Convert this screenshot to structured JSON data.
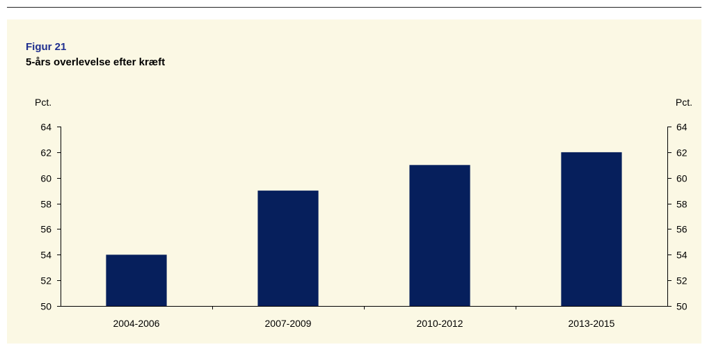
{
  "figure": {
    "label": "Figur 21",
    "title": "5-års overlevelse efter kræft"
  },
  "colors": {
    "panel_background": "#fbf8e4",
    "bar": "#061f5c",
    "label_accent": "#1f2f8f"
  },
  "chart_data": {
    "type": "bar",
    "title": "5-års overlevelse efter kræft",
    "categories": [
      "2004-2006",
      "2007-2009",
      "2010-2012",
      "2013-2015"
    ],
    "values": [
      54,
      59,
      61,
      62
    ],
    "ylabel_left": "Pct.",
    "ylabel_right": "Pct.",
    "ylim": [
      50,
      64
    ],
    "yticks": [
      50,
      52,
      54,
      56,
      58,
      60,
      62,
      64
    ],
    "grid": false,
    "secondary_axis": "right"
  }
}
